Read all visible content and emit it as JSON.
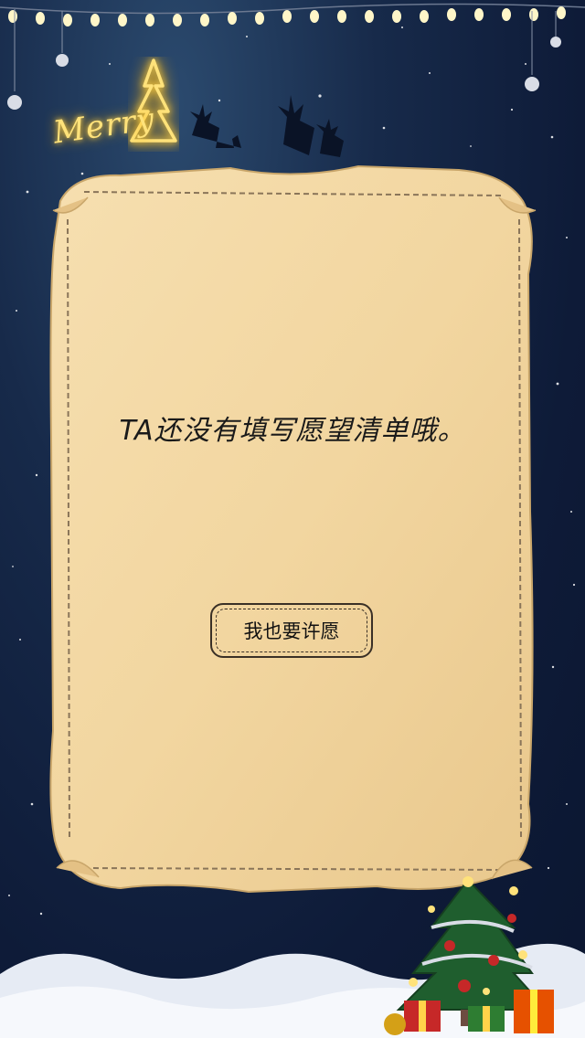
{
  "background": {
    "base_color": "#0e1b38",
    "accent_glow": "#ffd34a"
  },
  "decor": {
    "merry_text": "Merry",
    "icons": [
      "string-lights-icon",
      "glowing-tree-icon",
      "reindeer-silhouette-icon",
      "christmas-tree-icon",
      "gift-box-icon",
      "snow-ground"
    ]
  },
  "paper": {
    "color": "#f3d9a6",
    "message": "TA还没有填写愿望清单哦。"
  },
  "action": {
    "wish_button_label": "我也要许愿"
  }
}
